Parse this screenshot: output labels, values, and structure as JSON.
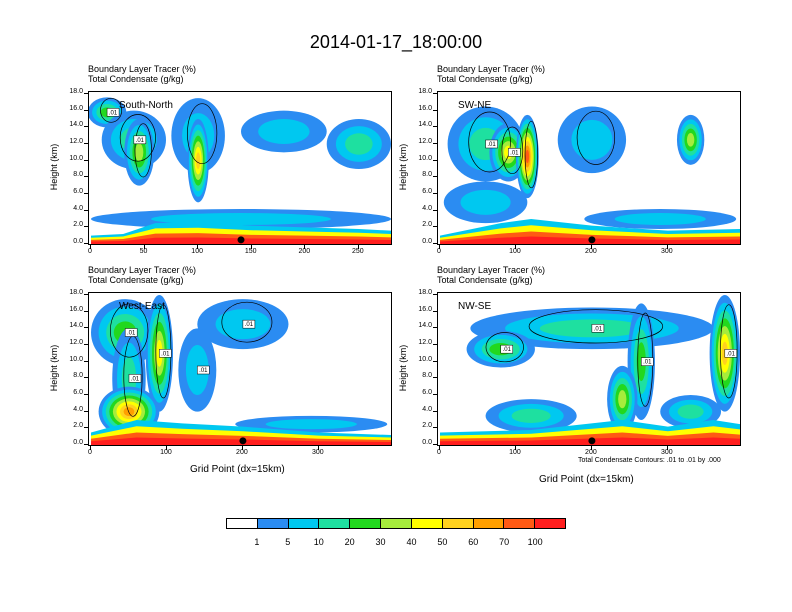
{
  "title": "2014-01-17_18:00:00",
  "panel_subtitle_line1": "Boundary Layer Tracer   (%)",
  "panel_subtitle_line2": "Total Condensate   (g/kg)",
  "contour_note": "Total Condensate Contours: .01 to .01 by .000",
  "ylabel": "Height (km)",
  "xlabel": "Grid Point (dx=15km)",
  "colors": {
    "levels": [
      "#ffffff",
      "#2b8cf2",
      "#00c8f0",
      "#1ee0a0",
      "#22d81e",
      "#a6ec3c",
      "#ffff00",
      "#ffd21e",
      "#ff9f00",
      "#ff5a14",
      "#ff1e1e"
    ],
    "contour": "#000000",
    "marker": "#000000"
  },
  "chart_data": {
    "type": "heatmap",
    "title": "2014-01-17_18:00:00",
    "colorbar": {
      "tick_labels": [
        "1",
        "5",
        "10",
        "20",
        "30",
        "40",
        "50",
        "60",
        "70",
        "100"
      ],
      "units": "%"
    },
    "yaxis": {
      "label": "Height (km)",
      "range": [
        0,
        18
      ],
      "tick_labels": [
        "0.0",
        "2.0",
        "4.0",
        "6.0",
        "8.0",
        "10.0",
        "12.0",
        "14.0",
        "16.0",
        "18.0"
      ]
    },
    "panels": [
      {
        "name": "South-North",
        "xrange": [
          0,
          280
        ],
        "xticks": [
          "0",
          "50",
          "100",
          "150",
          "200",
          "250"
        ],
        "xtick_values": [
          0,
          50,
          100,
          150,
          200,
          250
        ],
        "marker_x": 140,
        "contour_labels": [
          ".01",
          ".01"
        ],
        "blobs": [
          {
            "x": 15,
            "y": 15.8,
            "rx": 18,
            "ry": 1.8,
            "level": 4
          },
          {
            "x": 40,
            "y": 12.5,
            "rx": 30,
            "ry": 3.5,
            "level": 3
          },
          {
            "x": 45,
            "y": 11,
            "rx": 14,
            "ry": 4,
            "level": 5
          },
          {
            "x": 100,
            "y": 13,
            "rx": 25,
            "ry": 4.5,
            "level": 2
          },
          {
            "x": 100,
            "y": 10,
            "rx": 10,
            "ry": 5,
            "level": 7
          },
          {
            "x": 180,
            "y": 13.5,
            "rx": 40,
            "ry": 2.5,
            "level": 2
          },
          {
            "x": 250,
            "y": 12,
            "rx": 30,
            "ry": 3,
            "level": 3
          },
          {
            "x": 140,
            "y": 3,
            "rx": 140,
            "ry": 1.2,
            "level": 2
          }
        ],
        "surface": [
          [
            0,
            1.0
          ],
          [
            30,
            1.2
          ],
          [
            60,
            2.5
          ],
          [
            100,
            2.6
          ],
          [
            150,
            2.2
          ],
          [
            200,
            2.0
          ],
          [
            250,
            1.8
          ],
          [
            280,
            1.6
          ]
        ]
      },
      {
        "name": "SW-NE",
        "xrange": [
          0,
          395
        ],
        "xticks": [
          "0",
          "100",
          "200",
          "300"
        ],
        "xtick_values": [
          0,
          100,
          200,
          300
        ],
        "marker_x": 200,
        "contour_labels": [
          ".01",
          ".01"
        ],
        "blobs": [
          {
            "x": 60,
            "y": 12,
            "rx": 50,
            "ry": 4.5,
            "level": 3
          },
          {
            "x": 90,
            "y": 11,
            "rx": 25,
            "ry": 3.5,
            "level": 6
          },
          {
            "x": 115,
            "y": 10.5,
            "rx": 15,
            "ry": 5,
            "level": 9
          },
          {
            "x": 200,
            "y": 12.5,
            "rx": 45,
            "ry": 4,
            "level": 2
          },
          {
            "x": 330,
            "y": 12.5,
            "rx": 18,
            "ry": 3,
            "level": 5
          },
          {
            "x": 60,
            "y": 5,
            "rx": 55,
            "ry": 2.5,
            "level": 2
          },
          {
            "x": 290,
            "y": 3,
            "rx": 100,
            "ry": 1.2,
            "level": 2
          }
        ],
        "surface": [
          [
            0,
            1.0
          ],
          [
            80,
            2.5
          ],
          [
            120,
            3.0
          ],
          [
            200,
            2.2
          ],
          [
            300,
            1.6
          ],
          [
            395,
            1.8
          ]
        ]
      },
      {
        "name": "West-East",
        "xrange": [
          0,
          395
        ],
        "xticks": [
          "0",
          "100",
          "200",
          "300"
        ],
        "xtick_values": [
          0,
          100,
          200,
          300
        ],
        "marker_x": 200,
        "contour_labels": [
          ".01",
          ".01",
          ".01",
          ".01",
          ".01"
        ],
        "blobs": [
          {
            "x": 45,
            "y": 13.5,
            "rx": 45,
            "ry": 4,
            "level": 4
          },
          {
            "x": 90,
            "y": 11,
            "rx": 18,
            "ry": 7,
            "level": 6
          },
          {
            "x": 50,
            "y": 8,
            "rx": 22,
            "ry": 6,
            "level": 3
          },
          {
            "x": 200,
            "y": 14.5,
            "rx": 60,
            "ry": 3,
            "level": 2
          },
          {
            "x": 140,
            "y": 9,
            "rx": 25,
            "ry": 5,
            "level": 2
          },
          {
            "x": 50,
            "y": 4,
            "rx": 40,
            "ry": 3,
            "level": 8
          },
          {
            "x": 290,
            "y": 2.5,
            "rx": 100,
            "ry": 1.0,
            "level": 2
          }
        ],
        "surface": [
          [
            0,
            1.5
          ],
          [
            60,
            3.0
          ],
          [
            120,
            2.6
          ],
          [
            200,
            2.2
          ],
          [
            300,
            1.5
          ],
          [
            395,
            1.2
          ]
        ]
      },
      {
        "name": "NW-SE",
        "xrange": [
          0,
          395
        ],
        "xticks": [
          "0",
          "100",
          "200",
          "300"
        ],
        "xtick_values": [
          0,
          100,
          200,
          300
        ],
        "marker_x": 200,
        "contour_labels": [
          ".01",
          ".01",
          ".01",
          ".01"
        ],
        "blobs": [
          {
            "x": 200,
            "y": 14,
            "rx": 160,
            "ry": 2.5,
            "level": 3
          },
          {
            "x": 80,
            "y": 11.5,
            "rx": 45,
            "ry": 2.2,
            "level": 4
          },
          {
            "x": 265,
            "y": 10,
            "rx": 18,
            "ry": 7,
            "level": 4
          },
          {
            "x": 375,
            "y": 11,
            "rx": 20,
            "ry": 7,
            "level": 7
          },
          {
            "x": 120,
            "y": 3.5,
            "rx": 60,
            "ry": 2,
            "level": 3
          },
          {
            "x": 240,
            "y": 5.5,
            "rx": 20,
            "ry": 4,
            "level": 5
          },
          {
            "x": 330,
            "y": 4,
            "rx": 40,
            "ry": 2,
            "level": 3
          }
        ],
        "surface": [
          [
            0,
            1.5
          ],
          [
            120,
            1.8
          ],
          [
            240,
            3.0
          ],
          [
            300,
            2.2
          ],
          [
            360,
            3.0
          ],
          [
            395,
            2.5
          ]
        ]
      }
    ]
  }
}
